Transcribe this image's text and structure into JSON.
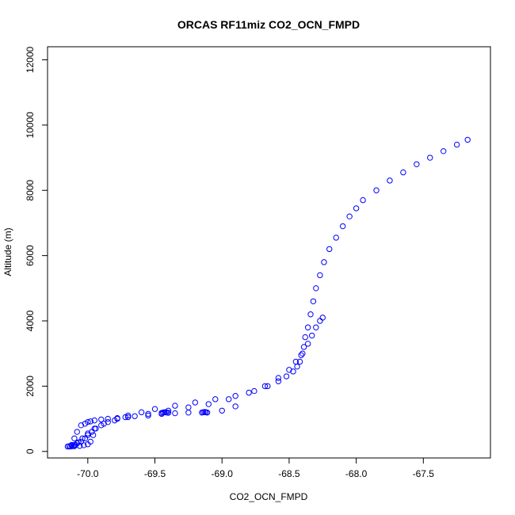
{
  "chart_data": {
    "type": "scatter",
    "title": "ORCAS RF11miz CO2_OCN_FMPD",
    "xlabel": "CO2_OCN_FMPD",
    "ylabel": "Altitude (m)",
    "xlim": [
      -70.3,
      -67.0
    ],
    "ylim": [
      -200,
      12400
    ],
    "x_ticks": [
      {
        "value": -70.0,
        "label": "-70.0"
      },
      {
        "value": -69.5,
        "label": "-69.5"
      },
      {
        "value": -69.0,
        "label": "-69.0"
      },
      {
        "value": -68.5,
        "label": "-68.5"
      },
      {
        "value": -68.0,
        "label": "-68.0"
      },
      {
        "value": -67.5,
        "label": "-67.5"
      }
    ],
    "y_ticks": [
      {
        "value": 0,
        "label": "0"
      },
      {
        "value": 2000,
        "label": "2000"
      },
      {
        "value": 4000,
        "label": "4000"
      },
      {
        "value": 6000,
        "label": "6000"
      },
      {
        "value": 8000,
        "label": "8000"
      },
      {
        "value": 10000,
        "label": "10000"
      },
      {
        "value": 12000,
        "label": "12000"
      }
    ],
    "marker_color": "#0000ff",
    "marker": "open-circle",
    "grid": false,
    "legend": "none",
    "series": [
      {
        "x": [
          -67.17,
          -67.25,
          -67.35,
          -67.45,
          -67.55,
          -67.65,
          -67.75,
          -67.85,
          -67.95,
          -68.0,
          -68.05,
          -68.1,
          -68.15,
          -68.2,
          -68.24,
          -68.27,
          -68.3,
          -68.32,
          -68.34,
          -68.36,
          -68.38,
          -68.39,
          -68.41,
          -68.42,
          -68.44,
          -68.47,
          -68.52,
          -68.58,
          -68.66,
          -68.76,
          -68.9,
          -69.05,
          -69.2,
          -69.35,
          -69.5,
          -69.6,
          -69.7,
          -69.78,
          -69.85,
          -69.9,
          -69.94,
          -69.97,
          -70.0,
          -70.02,
          -70.05,
          -70.08,
          -70.1,
          -70.12
        ],
        "y": [
          9550,
          9400,
          9200,
          9000,
          8800,
          8550,
          8300,
          8000,
          7700,
          7450,
          7200,
          6900,
          6550,
          6200,
          5800,
          5400,
          5000,
          4600,
          4200,
          3800,
          3500,
          3200,
          2950,
          2750,
          2600,
          2450,
          2300,
          2150,
          2000,
          1850,
          1700,
          1600,
          1500,
          1400,
          1300,
          1200,
          1100,
          1000,
          900,
          800,
          700,
          600,
          500,
          400,
          300,
          250,
          200,
          180
        ]
      },
      {
        "x": [
          -68.25,
          -68.27,
          -68.3,
          -68.33,
          -68.36,
          -68.4,
          -68.45,
          -68.5,
          -68.58,
          -68.68,
          -68.8,
          -68.95,
          -69.1,
          -69.25,
          -69.4,
          -69.55,
          -69.7,
          -69.8,
          -69.88,
          -69.95,
          -70.0,
          -70.04,
          -70.07,
          -70.09,
          -70.11,
          -70.13,
          -70.15
        ],
        "y": [
          4100,
          4000,
          3800,
          3550,
          3300,
          3000,
          2750,
          2500,
          2250,
          2000,
          1800,
          1600,
          1450,
          1350,
          1250,
          1150,
          1050,
          950,
          850,
          700,
          550,
          400,
          280,
          200,
          160,
          150,
          150
        ]
      },
      {
        "x": [
          -70.12,
          -70.1,
          -70.08,
          -70.05,
          -70.02,
          -70.0,
          -69.98,
          -69.95,
          -69.9,
          -69.85,
          -69.78,
          -69.72,
          -69.65,
          -69.55,
          -69.45,
          -69.35,
          -69.25,
          -69.12,
          -69.0,
          -68.9
        ],
        "y": [
          200,
          400,
          600,
          800,
          850,
          900,
          920,
          950,
          980,
          1000,
          1020,
          1050,
          1080,
          1100,
          1150,
          1170,
          1190,
          1200,
          1250,
          1380
        ]
      },
      {
        "x": [
          -70.14,
          -70.1,
          -70.06,
          -70.03,
          -70.0,
          -69.98,
          -69.96
        ],
        "y": [
          160,
          160,
          170,
          190,
          220,
          300,
          500
        ]
      },
      {
        "x": [
          -69.45,
          -69.44,
          -69.43,
          -69.42,
          -69.41,
          -69.4,
          -69.15,
          -69.14,
          -69.13,
          -69.12,
          -69.11
        ],
        "y": [
          1180,
          1190,
          1200,
          1200,
          1190,
          1185,
          1190,
          1200,
          1210,
          1200,
          1190
        ]
      }
    ]
  }
}
